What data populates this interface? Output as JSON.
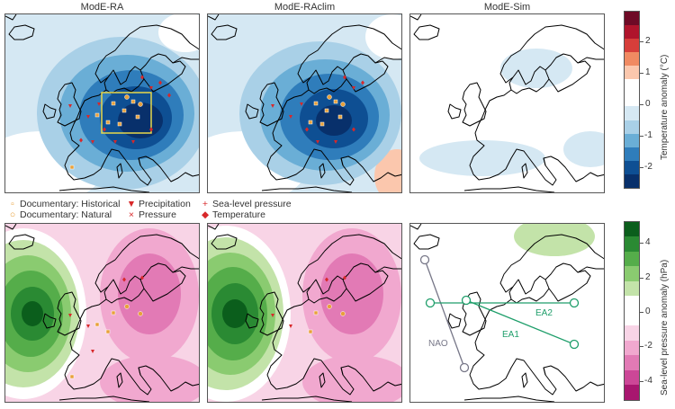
{
  "panels": {
    "top": [
      {
        "title": "ModE-RA"
      },
      {
        "title": "ModE-RAclim"
      },
      {
        "title": "ModE-Sim"
      }
    ]
  },
  "legend": {
    "items": [
      {
        "label": "Documentary: Historical",
        "symbol": "square",
        "color": "#e8a03a"
      },
      {
        "label": "Documentary: Natural",
        "symbol": "circle",
        "color": "#e8a03a"
      },
      {
        "label": "Precipitation",
        "symbol": "triangle-down",
        "color": "#d8282a"
      },
      {
        "label": "Pressure",
        "symbol": "x",
        "color": "#d8282a"
      },
      {
        "label": "Sea-level pressure",
        "symbol": "plus",
        "color": "#d8282a"
      },
      {
        "label": "Temperature",
        "symbol": "diamond",
        "color": "#d8282a"
      }
    ]
  },
  "colorbars": {
    "temperature": {
      "label": "Temperature anomaly (°C)",
      "ticks": [
        "2",
        "1",
        "0",
        "-1",
        "-2"
      ],
      "colors": [
        "#6e0a26",
        "#b0142c",
        "#d63e3a",
        "#f08a62",
        "#fbc7ad",
        "#ffffff",
        "#ffffff",
        "#d5e8f3",
        "#a9d0e7",
        "#6aaed6",
        "#2f7dbb",
        "#0e4f93",
        "#08306b"
      ]
    },
    "pressure": {
      "label": "Sea-level pressure anomaly (hPa)",
      "ticks": [
        "4",
        "2",
        "0",
        "-2",
        "-4"
      ],
      "colors": [
        "#0b5e1c",
        "#2a8a33",
        "#55ad4a",
        "#8acb70",
        "#c3e3a9",
        "#ffffff",
        "#ffffff",
        "#f8d4e6",
        "#f1a8cf",
        "#e27ab5",
        "#cc4797",
        "#a8166f"
      ]
    }
  },
  "indices": [
    {
      "label": "NAO",
      "color": "#777788"
    },
    {
      "label": "EA2",
      "color": "#1e9e6a"
    },
    {
      "label": "EA1",
      "color": "#1e9e6a"
    }
  ]
}
